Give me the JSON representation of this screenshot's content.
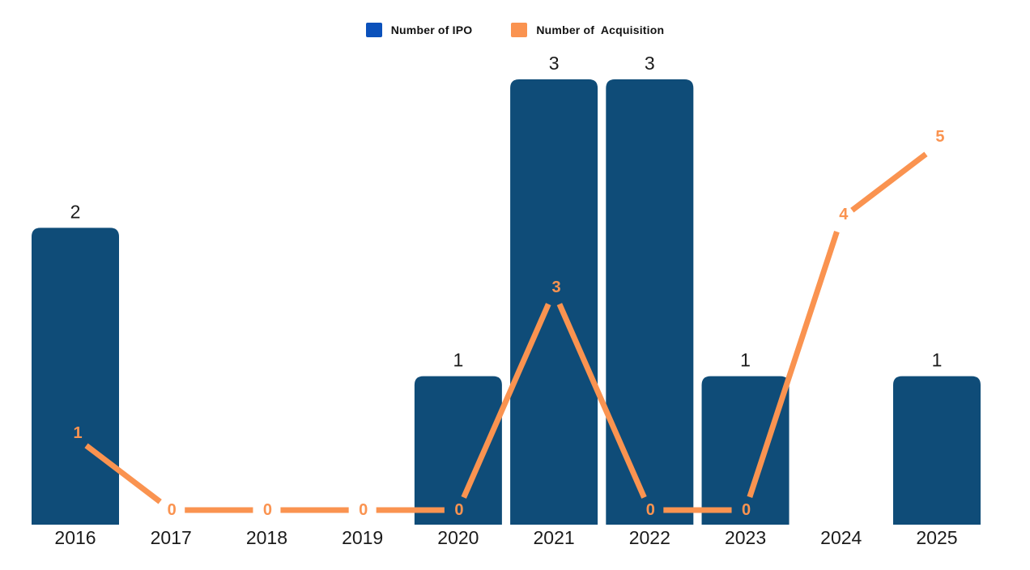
{
  "page": {
    "background": "#ffffff"
  },
  "legend": {
    "items": [
      {
        "label": "Number of IPO",
        "color": "#0b51bb"
      },
      {
        "label": "Number of  Acquisition",
        "color": "#fa9350"
      }
    ]
  },
  "chart_data": {
    "type": "bar",
    "title": "",
    "xlabel": "",
    "ylabel": "",
    "grid": false,
    "legend_position": "top-center",
    "data_labels": true,
    "categories": [
      "2016",
      "2017",
      "2018",
      "2019",
      "2020",
      "2021",
      "2022",
      "2023",
      "2024",
      "2025"
    ],
    "series": [
      {
        "name": "Number of IPO",
        "type": "bar",
        "color": "#0f4c78",
        "label_color": "#1b1b1b",
        "values": [
          2,
          0,
          0,
          0,
          1,
          3,
          3,
          1,
          0,
          1
        ],
        "ylim": [
          0,
          3
        ]
      },
      {
        "name": "Number of  Acquisition",
        "type": "line",
        "color": "#fa9350",
        "label_color": "#fa9350",
        "values": [
          1,
          0,
          0,
          0,
          0,
          3,
          0,
          0,
          4,
          5
        ],
        "ylim": [
          0,
          5
        ]
      }
    ]
  }
}
